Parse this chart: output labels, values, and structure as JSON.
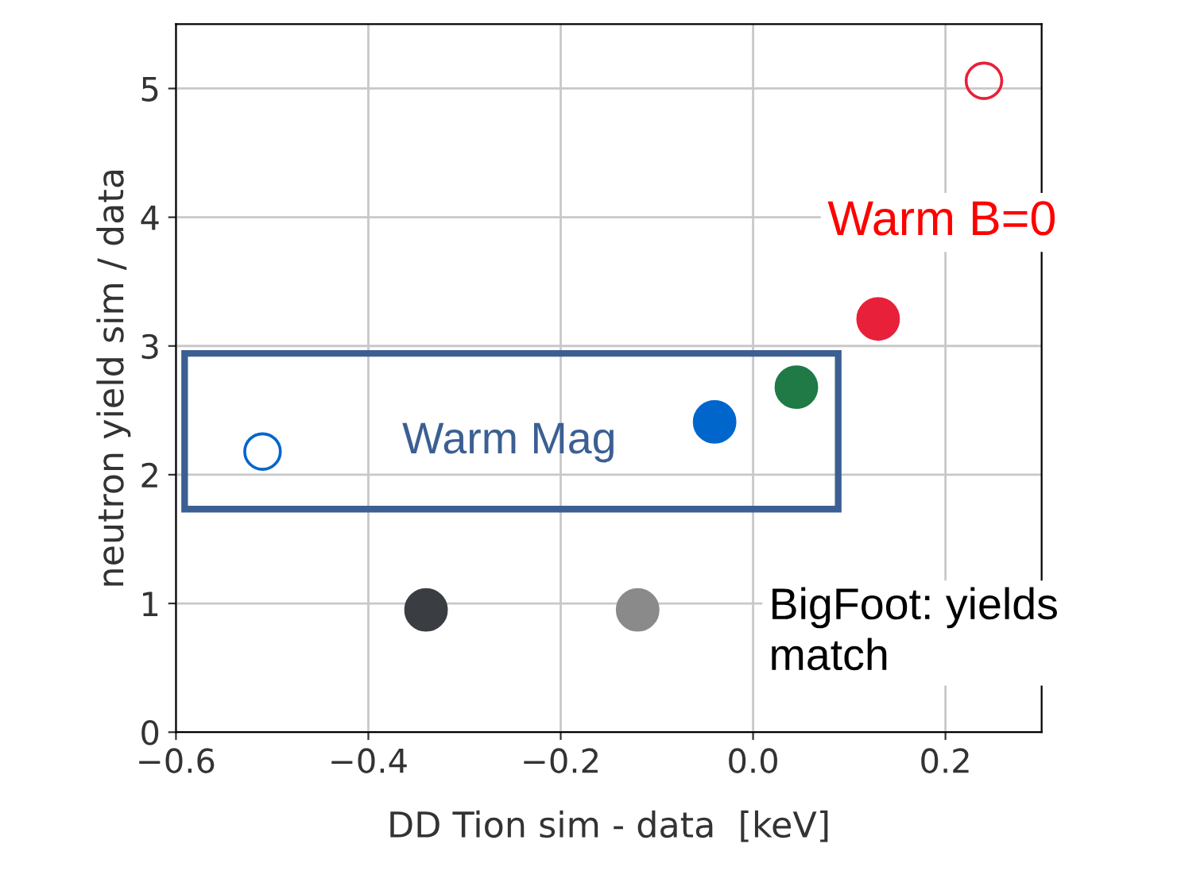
{
  "chart_data": {
    "type": "scatter",
    "xlabel": "DD Tion sim - data  [keV]",
    "ylabel": "neutron yield sim / data",
    "xlim": [
      -0.6,
      0.3
    ],
    "ylim": [
      0,
      5.5
    ],
    "xticks": [
      {
        "value": -0.6,
        "label": "−0.6"
      },
      {
        "value": -0.4,
        "label": "−0.4"
      },
      {
        "value": -0.2,
        "label": "−0.2"
      },
      {
        "value": 0.0,
        "label": "0.0"
      },
      {
        "value": 0.2,
        "label": "0.2"
      }
    ],
    "yticks": [
      0,
      1,
      2,
      3,
      4,
      5
    ],
    "grid": true,
    "marker": "circle",
    "series": [
      {
        "x": [
          0.24
        ],
        "values": [
          5.06
        ],
        "color": "#e8203a"
      },
      {
        "x": [
          0.13
        ],
        "values": [
          3.21
        ],
        "color": "#e8203a"
      },
      {
        "x": [
          0.045
        ],
        "values": [
          2.68
        ],
        "color": "#1f7a45"
      },
      {
        "x": [
          -0.04
        ],
        "values": [
          2.41
        ],
        "color": "#0066cc"
      },
      {
        "x": [
          -0.51
        ],
        "values": [
          2.18
        ],
        "color": "#0066cc"
      },
      {
        "x": [
          -0.34
        ],
        "values": [
          0.95
        ],
        "color": "#3a3d42"
      },
      {
        "x": [
          -0.12
        ],
        "values": [
          0.95
        ],
        "color": "#8a8a8a"
      }
    ],
    "annotations": [
      "Warm B=0",
      "Warm Mag",
      "BigFoot: yields\nmatch"
    ]
  }
}
